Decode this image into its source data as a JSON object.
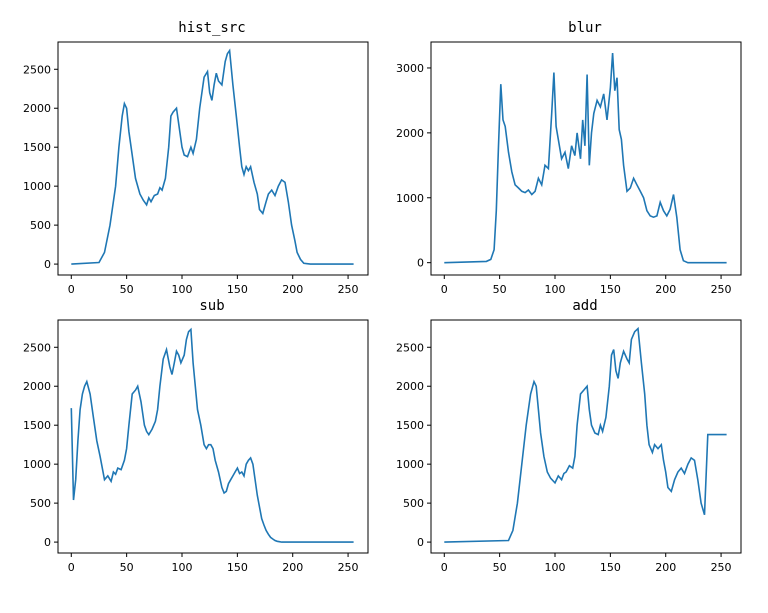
{
  "chart_data": [
    {
      "type": "line",
      "title": "hist_src",
      "xlabel": "",
      "ylabel": "",
      "xlim": [
        -12,
        268
      ],
      "ylim": [
        -140,
        2850
      ],
      "xticks": [
        0,
        50,
        100,
        150,
        200,
        250
      ],
      "yticks": [
        0,
        500,
        1000,
        1500,
        2000,
        2500
      ],
      "color": "#1f77b4",
      "series": [
        {
          "x": [
            0,
            25,
            30,
            35,
            40,
            43,
            46,
            48,
            50,
            52,
            55,
            58,
            62,
            65,
            68,
            70,
            72,
            75,
            78,
            80,
            82,
            85,
            88,
            90,
            92,
            95,
            98,
            100,
            102,
            105,
            108,
            110,
            113,
            116,
            120,
            123,
            125,
            127,
            129,
            131,
            133,
            136,
            139,
            141,
            143,
            146,
            149,
            152,
            154,
            156,
            158,
            160,
            162,
            165,
            168,
            170,
            173,
            176,
            178,
            181,
            184,
            187,
            190,
            193,
            196,
            199,
            202,
            204,
            207,
            210,
            213,
            216,
            219,
            222,
            225,
            230,
            255
          ],
          "y": [
            0,
            20,
            150,
            500,
            1000,
            1500,
            1900,
            2060,
            2000,
            1700,
            1400,
            1100,
            900,
            820,
            760,
            850,
            800,
            880,
            900,
            980,
            950,
            1100,
            1500,
            1900,
            1950,
            2000,
            1700,
            1500,
            1400,
            1380,
            1500,
            1420,
            1600,
            2000,
            2400,
            2470,
            2200,
            2100,
            2300,
            2450,
            2350,
            2300,
            2600,
            2700,
            2740,
            2300,
            1900,
            1500,
            1250,
            1150,
            1250,
            1200,
            1250,
            1050,
            900,
            700,
            650,
            800,
            900,
            950,
            880,
            1000,
            1080,
            1050,
            800,
            500,
            300,
            150,
            60,
            10,
            5,
            0,
            0,
            0,
            0,
            0,
            0
          ]
        }
      ]
    },
    {
      "type": "line",
      "title": "blur",
      "xlabel": "",
      "ylabel": "",
      "xlim": [
        -12,
        268
      ],
      "ylim": [
        -190,
        3400
      ],
      "xticks": [
        0,
        50,
        100,
        150,
        200,
        250
      ],
      "yticks": [
        0,
        1000,
        2000,
        3000
      ],
      "color": "#1f77b4",
      "series": [
        {
          "x": [
            0,
            38,
            42,
            45,
            47,
            49,
            51,
            53,
            55,
            58,
            61,
            64,
            67,
            70,
            73,
            76,
            79,
            82,
            85,
            88,
            91,
            94,
            97,
            99,
            101,
            103,
            106,
            109,
            112,
            115,
            118,
            120,
            123,
            125,
            127,
            129,
            131,
            133,
            135,
            138,
            141,
            144,
            147,
            150,
            152,
            154,
            156,
            158,
            160,
            162,
            165,
            168,
            171,
            174,
            177,
            180,
            183,
            186,
            189,
            192,
            195,
            198,
            201,
            204,
            207,
            210,
            213,
            216,
            220,
            225,
            255
          ],
          "y": [
            0,
            20,
            50,
            200,
            800,
            1800,
            2750,
            2200,
            2100,
            1700,
            1400,
            1200,
            1150,
            1100,
            1080,
            1120,
            1050,
            1100,
            1300,
            1200,
            1500,
            1450,
            2300,
            2930,
            2100,
            1900,
            1600,
            1700,
            1450,
            1800,
            1650,
            2000,
            1600,
            2200,
            1800,
            2900,
            1500,
            2000,
            2300,
            2500,
            2400,
            2600,
            2200,
            2700,
            3230,
            2650,
            2850,
            2050,
            1900,
            1500,
            1100,
            1150,
            1300,
            1200,
            1100,
            1000,
            800,
            720,
            700,
            720,
            930,
            800,
            720,
            820,
            1050,
            700,
            200,
            30,
            0,
            0,
            0
          ]
        }
      ]
    },
    {
      "type": "line",
      "title": "sub",
      "xlabel": "",
      "ylabel": "",
      "xlim": [
        -12,
        268
      ],
      "ylim": [
        -140,
        2850
      ],
      "xticks": [
        0,
        50,
        100,
        150,
        200,
        250
      ],
      "yticks": [
        0,
        500,
        1000,
        1500,
        2000,
        2500
      ],
      "color": "#1f77b4",
      "series": [
        {
          "x": [
            0,
            2,
            4,
            6,
            8,
            10,
            12,
            14,
            17,
            20,
            23,
            26,
            30,
            33,
            36,
            38,
            40,
            42,
            45,
            48,
            50,
            52,
            55,
            58,
            60,
            63,
            66,
            68,
            70,
            73,
            76,
            78,
            80,
            83,
            86,
            89,
            91,
            93,
            95,
            97,
            99,
            102,
            104,
            106,
            108,
            110,
            112,
            114,
            117,
            120,
            122,
            124,
            126,
            128,
            130,
            133,
            136,
            138,
            140,
            142,
            144,
            146,
            148,
            150,
            152,
            154,
            156,
            158,
            160,
            162,
            164,
            166,
            168,
            170,
            172,
            174,
            176,
            178,
            180,
            182,
            184,
            186,
            188,
            190,
            192,
            195,
            198,
            200,
            205,
            210,
            220,
            230,
            240,
            255
          ],
          "y": [
            1720,
            540,
            800,
            1300,
            1700,
            1900,
            2000,
            2060,
            1900,
            1600,
            1300,
            1100,
            800,
            850,
            780,
            900,
            870,
            950,
            930,
            1050,
            1200,
            1500,
            1900,
            1950,
            2000,
            1800,
            1500,
            1420,
            1380,
            1450,
            1550,
            1700,
            2000,
            2350,
            2470,
            2250,
            2150,
            2300,
            2450,
            2400,
            2300,
            2400,
            2600,
            2700,
            2730,
            2300,
            2000,
            1700,
            1500,
            1250,
            1200,
            1250,
            1250,
            1200,
            1050,
            900,
            700,
            630,
            650,
            750,
            800,
            850,
            900,
            950,
            880,
            900,
            850,
            1000,
            1050,
            1080,
            1000,
            800,
            600,
            450,
            300,
            220,
            150,
            100,
            60,
            40,
            20,
            10,
            5,
            0,
            0,
            0,
            0,
            0,
            0,
            0,
            0,
            0,
            0,
            0
          ]
        }
      ]
    },
    {
      "type": "line",
      "title": "add",
      "xlabel": "",
      "ylabel": "",
      "xlim": [
        -12,
        268
      ],
      "ylim": [
        -140,
        2850
      ],
      "xticks": [
        0,
        50,
        100,
        150,
        200,
        250
      ],
      "yticks": [
        0,
        500,
        1000,
        1500,
        2000,
        2500
      ],
      "color": "#1f77b4",
      "series": [
        {
          "x": [
            0,
            58,
            62,
            66,
            70,
            74,
            78,
            81,
            83,
            85,
            87,
            90,
            93,
            96,
            100,
            103,
            106,
            108,
            110,
            113,
            116,
            118,
            120,
            123,
            126,
            129,
            131,
            133,
            136,
            139,
            141,
            143,
            146,
            149,
            151,
            153,
            155,
            157,
            159,
            162,
            165,
            167,
            169,
            172,
            175,
            178,
            181,
            183,
            185,
            188,
            190,
            193,
            196,
            198,
            200,
            202,
            205,
            208,
            211,
            214,
            217,
            220,
            223,
            226,
            229,
            232,
            235,
            238,
            241,
            244,
            247,
            250,
            253,
            255
          ],
          "y": [
            0,
            20,
            150,
            500,
            1000,
            1500,
            1900,
            2060,
            2000,
            1700,
            1400,
            1100,
            900,
            820,
            760,
            850,
            800,
            880,
            900,
            980,
            950,
            1100,
            1500,
            1900,
            1950,
            2000,
            1700,
            1500,
            1400,
            1380,
            1500,
            1420,
            1600,
            2000,
            2400,
            2470,
            2200,
            2100,
            2300,
            2450,
            2350,
            2300,
            2600,
            2700,
            2740,
            2300,
            1900,
            1500,
            1250,
            1150,
            1250,
            1200,
            1250,
            1050,
            900,
            700,
            650,
            800,
            900,
            950,
            880,
            1000,
            1080,
            1050,
            800,
            500,
            350,
            1380,
            1380,
            1380,
            1380,
            1380,
            1380,
            1380
          ]
        }
      ]
    }
  ]
}
